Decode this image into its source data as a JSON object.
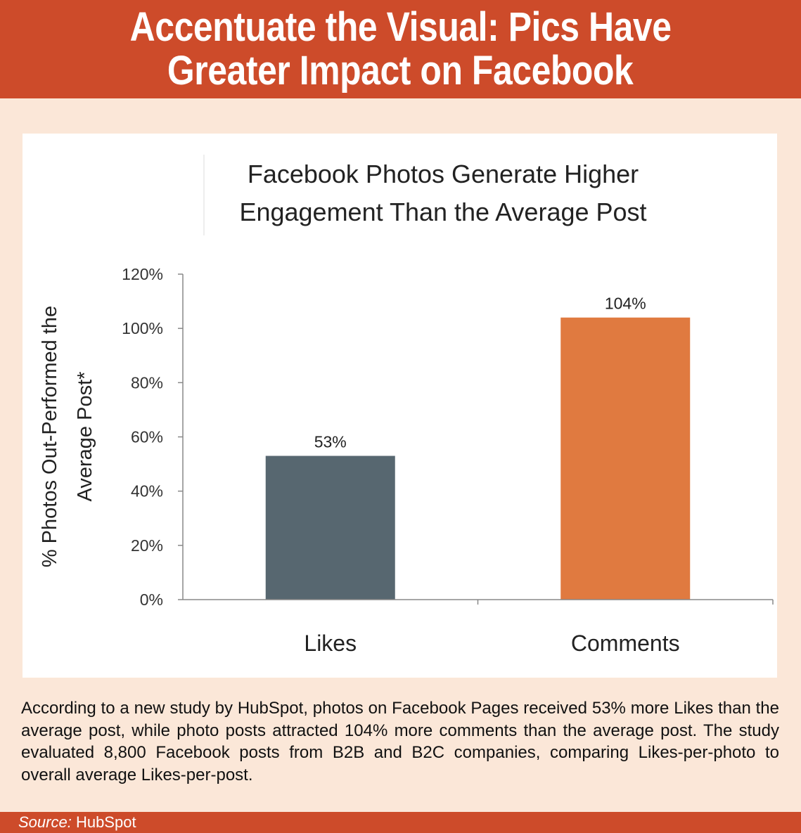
{
  "header": {
    "line1": "Accentuate the Visual: Pics Have",
    "line2": "Greater Impact on Facebook"
  },
  "chart_data": {
    "type": "bar",
    "title_lines": [
      "Facebook Photos Generate Higher",
      "Engagement Than the Average Post"
    ],
    "ylabel_lines": [
      "% Photos Out-Performed the",
      "Average Post*"
    ],
    "xlabel": "",
    "categories": [
      "Likes",
      "Comments"
    ],
    "values": [
      53,
      104
    ],
    "data_labels": [
      "53%",
      "104%"
    ],
    "colors": [
      "#576770",
      "#e07a40"
    ],
    "yticks": [
      0,
      20,
      40,
      60,
      80,
      100,
      120
    ],
    "ytick_labels": [
      "0%",
      "20%",
      "40%",
      "60%",
      "80%",
      "100%",
      "120%"
    ],
    "ylim": [
      0,
      120
    ],
    "grid": false,
    "legend": "none"
  },
  "caption": {
    "text": "According to a new study by HubSpot, photos on Facebook Pages received 53% more Likes than the average post, while photo posts attracted 104% more comments than the average post. The study evaluated 8,800 Facebook posts from B2B and B2C companies, comparing Likes-per-photo to overall average Likes-per-post."
  },
  "footer": {
    "source_label": "Source:",
    "source_name": "HubSpot"
  },
  "colors": {
    "accent": "#cd4b2a",
    "background": "#fbe7d8"
  }
}
